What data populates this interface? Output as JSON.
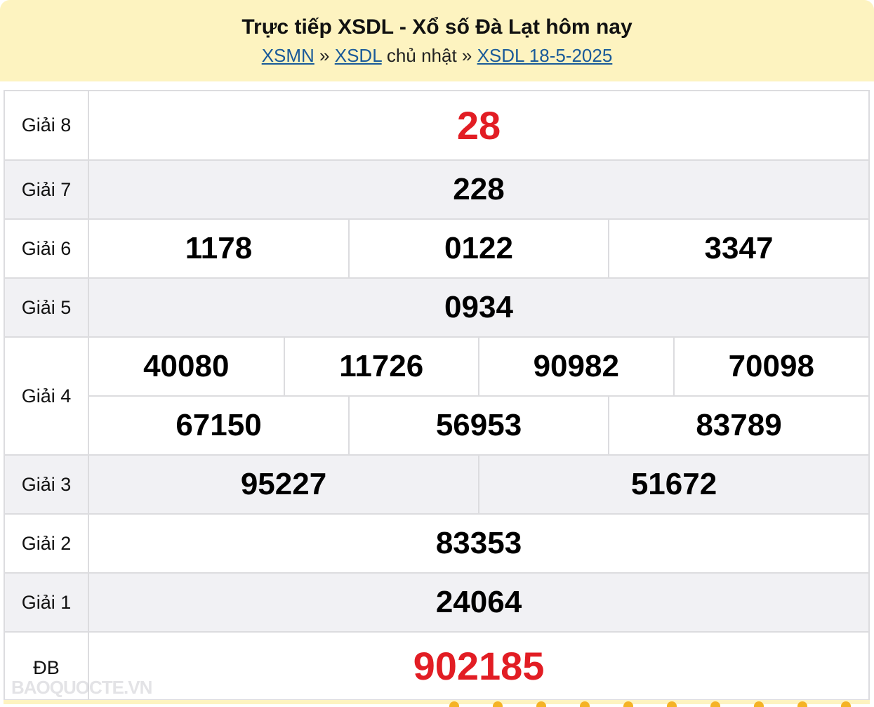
{
  "header": {
    "title": "Trực tiếp XSDL - Xổ số Đà Lạt hôm nay",
    "breadcrumb": {
      "link1": "XSMN",
      "sep1": " » ",
      "link2": "XSDL",
      "text": " chủ nhật » ",
      "link3": "XSDL 18-5-2025"
    }
  },
  "results": {
    "g8": {
      "label": "Giải 8",
      "values": [
        "28"
      ]
    },
    "g7": {
      "label": "Giải 7",
      "values": [
        "228"
      ]
    },
    "g6": {
      "label": "Giải 6",
      "values": [
        "1178",
        "0122",
        "3347"
      ]
    },
    "g5": {
      "label": "Giải 5",
      "values": [
        "0934"
      ]
    },
    "g4": {
      "label": "Giải 4",
      "values": [
        "40080",
        "11726",
        "90982",
        "70098",
        "67150",
        "56953",
        "83789"
      ]
    },
    "g3": {
      "label": "Giải 3",
      "values": [
        "95227",
        "51672"
      ]
    },
    "g2": {
      "label": "Giải 2",
      "values": [
        "83353"
      ]
    },
    "g1": {
      "label": "Giải 1",
      "values": [
        "24064"
      ]
    },
    "db": {
      "label": "ĐB",
      "values": [
        "902185"
      ]
    }
  },
  "watermark": "BAOQUOCTE.VN",
  "colors": {
    "header_bg": "#fdf3c0",
    "highlight": "#e21d24",
    "link": "#1a5a99",
    "alt_row": "#f1f1f4"
  }
}
